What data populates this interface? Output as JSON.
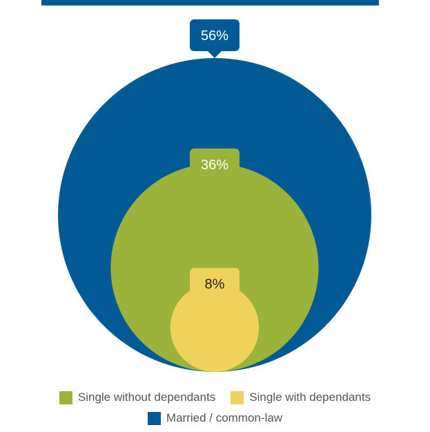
{
  "colors": {
    "married": "#005a96",
    "single_without": "#9bb23b",
    "single_with": "#efd25b",
    "label_text_light": "#ffffff",
    "label_text_dark": "#222222",
    "legend_text": "#555555"
  },
  "chart_data": {
    "type": "nested-bubble",
    "series": [
      {
        "name": "Married / common-law",
        "value": 56,
        "label": "56%",
        "color": "#005a96"
      },
      {
        "name": "Single without dependants",
        "value": 36,
        "label": "36%",
        "color": "#9bb23b"
      },
      {
        "name": "Single with dependants",
        "value": 8,
        "label": "8%",
        "color": "#efd25b"
      }
    ],
    "legend": {
      "placement": "bottom",
      "rows": [
        [
          "Single without dependants",
          "Single with dependants"
        ],
        [
          "Married / common-law"
        ]
      ]
    }
  },
  "legend": {
    "single_without": "Single without dependants",
    "single_with": "Single with dependants",
    "married": "Married / common-law"
  }
}
